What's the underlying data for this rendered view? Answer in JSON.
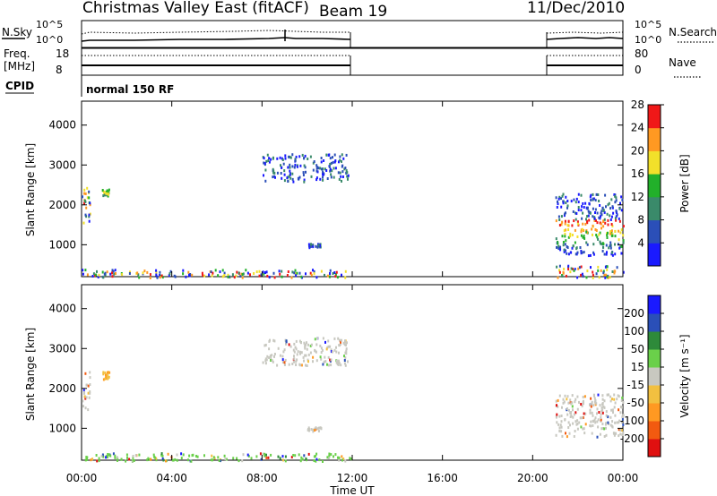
{
  "header": {
    "title": "Christmas Valley East (fitACF)",
    "beam": "Beam 19",
    "date": "11/Dec/2010"
  },
  "summary": {
    "nsky_label": "N.Sky",
    "nsky_ticks": [
      "10^5",
      "10^0"
    ],
    "nsearch_label": "N.Search",
    "nsearch_ticks": [
      "10^5",
      "10^0"
    ],
    "freq_label": "Freq.",
    "freq_unit": "[MHz]",
    "freq_ticks": [
      "18",
      "8"
    ],
    "nave_label": "Nave",
    "nave_ticks": [
      "80",
      "0"
    ],
    "cpid_label": "CPID",
    "cpid_value": "normal 150 RF"
  },
  "chart_data": [
    {
      "type": "heatmap",
      "name": "power",
      "ylabel": "Slant Range [km]",
      "yticks": [
        1000,
        2000,
        3000,
        4000
      ],
      "ylim": [
        200,
        4600
      ],
      "xlim": [
        0,
        24
      ],
      "colorbar_label": "Power [dB]",
      "colorbar_ticks": [
        "4",
        "8",
        "12",
        "16",
        "20",
        "24",
        "28"
      ],
      "colors": [
        "#1a1aff",
        "#2b4fb8",
        "#3a8a6a",
        "#22b02a",
        "#f2e02a",
        "#ff9922",
        "#f01818"
      ],
      "regions": [
        {
          "t0": 0.0,
          "t1": 0.35,
          "r0": 1450,
          "r1": 2550,
          "level": "mixed"
        },
        {
          "t0": 0.9,
          "t1": 1.2,
          "r0": 2250,
          "r1": 2450,
          "level": "mid"
        },
        {
          "t0": 8.0,
          "t1": 11.8,
          "r0": 2600,
          "r1": 3300,
          "level": "low"
        },
        {
          "t0": 10.0,
          "t1": 10.6,
          "r0": 950,
          "r1": 1050,
          "level": "low"
        },
        {
          "t0": 0.0,
          "t1": 12.0,
          "r0": 200,
          "r1": 400,
          "level": "mixed"
        },
        {
          "t0": 21.0,
          "t1": 24.0,
          "r0": 750,
          "r1": 1650,
          "level": "high"
        },
        {
          "t0": 21.0,
          "t1": 24.0,
          "r0": 1650,
          "r1": 2300,
          "level": "low"
        },
        {
          "t0": 21.0,
          "t1": 24.0,
          "r0": 200,
          "r1": 500,
          "level": "mixed"
        }
      ]
    },
    {
      "type": "heatmap",
      "name": "velocity",
      "xlabel": "Time UT",
      "ylabel": "Slant Range [km]",
      "yticks": [
        1000,
        2000,
        3000,
        4000
      ],
      "ylim": [
        200,
        4600
      ],
      "xlim": [
        0,
        24
      ],
      "xticks": [
        "00:00",
        "04:00",
        "08:00",
        "12:00",
        "16:00",
        "20:00",
        "00:00"
      ],
      "colorbar_label": "Velocity [m s⁻¹]",
      "colorbar_ticks": [
        "-200",
        "-100",
        "-50",
        "-15",
        "15",
        "50",
        "100",
        "200"
      ],
      "colors": [
        "#e01010",
        "#f25a10",
        "#ff9922",
        "#f2c040",
        "#c8c8c0",
        "#6ad04a",
        "#2e8a3a",
        "#2a4fb8",
        "#1a1aff"
      ],
      "regions": [
        {
          "t0": 0.0,
          "t1": 0.35,
          "r0": 1450,
          "r1": 2450,
          "level": "neutral"
        },
        {
          "t0": 0.9,
          "t1": 1.2,
          "r0": 2250,
          "r1": 2450,
          "level": "slow-away"
        },
        {
          "t0": 8.0,
          "t1": 11.8,
          "r0": 2600,
          "r1": 3300,
          "level": "neutral"
        },
        {
          "t0": 10.0,
          "t1": 10.6,
          "r0": 950,
          "r1": 1050,
          "level": "neutral"
        },
        {
          "t0": 0.0,
          "t1": 12.0,
          "r0": 200,
          "r1": 400,
          "level": "slow-toward"
        },
        {
          "t0": 21.0,
          "t1": 24.0,
          "r0": 800,
          "r1": 1900,
          "level": "neutral"
        }
      ]
    }
  ]
}
